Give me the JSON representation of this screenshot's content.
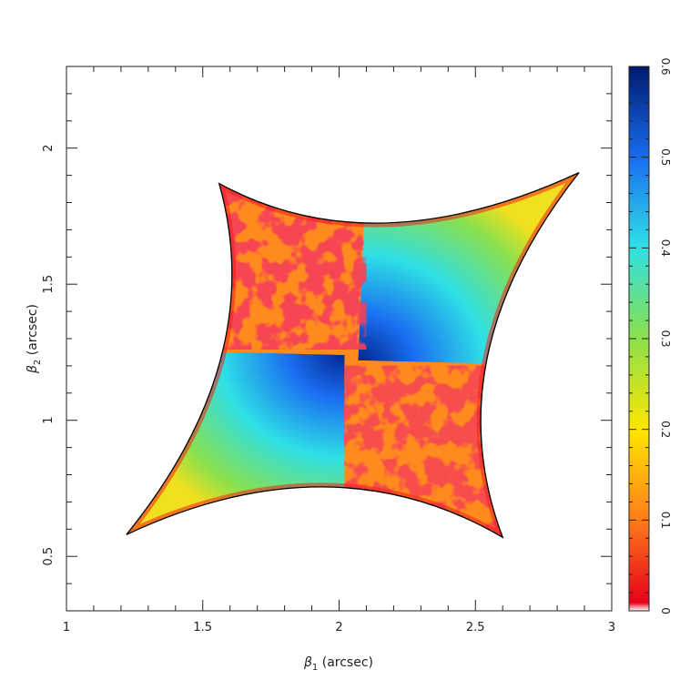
{
  "chart_data": {
    "type": "heatmap",
    "title": "",
    "xlabel_symbol": "β",
    "xlabel_sub": "1",
    "xlabel_unit": "(arcsec)",
    "ylabel_symbol": "β",
    "ylabel_sub": "2",
    "ylabel_unit": "(arcsec)",
    "xlim": [
      1,
      3
    ],
    "ylim": [
      0.3,
      2.3
    ],
    "xticks": [
      1,
      1.5,
      2,
      2.5,
      3
    ],
    "xtick_labels": [
      "1",
      "1.5",
      "2",
      "2.5",
      "3"
    ],
    "yticks": [
      0.5,
      1,
      1.5,
      2
    ],
    "ytick_labels": [
      "0.5",
      "1",
      "1.5",
      "2"
    ],
    "caustic": {
      "center": [
        2.03,
        1.23
      ],
      "cusps": [
        [
          1.22,
          0.58
        ],
        [
          2.6,
          0.57
        ],
        [
          2.88,
          1.91
        ],
        [
          1.56,
          1.87
        ]
      ]
    },
    "colorbar": {
      "range": [
        0,
        0.6
      ],
      "ticks": [
        0,
        0.1,
        0.2,
        0.3,
        0.4,
        0.5,
        0.6
      ],
      "tick_labels": [
        "0",
        "0.1",
        "0.2",
        "0.3",
        "0.4",
        "0.5",
        "0.6"
      ],
      "colors": [
        "#ffffff",
        "#e8001a",
        "#ff7e1a",
        "#ffe600",
        "#8ce04a",
        "#2ee0e6",
        "#1a6ef0",
        "#001a6e"
      ]
    }
  }
}
